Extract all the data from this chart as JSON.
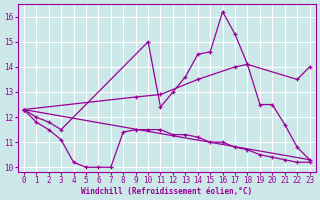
{
  "xlabel": "Windchill (Refroidissement éolien,°C)",
  "background_color": "#cce8e8",
  "grid_color": "#ffffff",
  "line_color": "#990099",
  "xlim": [
    -0.5,
    23.5
  ],
  "ylim": [
    9.8,
    16.5
  ],
  "yticks": [
    10,
    11,
    12,
    13,
    14,
    15,
    16
  ],
  "xticks": [
    0,
    1,
    2,
    3,
    4,
    5,
    6,
    7,
    8,
    9,
    10,
    11,
    12,
    13,
    14,
    15,
    16,
    17,
    18,
    19,
    20,
    21,
    22,
    23
  ],
  "series": [
    {
      "x": [
        0,
        1,
        2,
        3,
        4,
        5,
        6,
        7,
        8,
        9,
        10,
        11,
        12,
        13,
        14,
        15,
        16,
        17,
        18,
        19,
        20,
        21,
        22,
        23
      ],
      "y": [
        12.3,
        11.8,
        11.5,
        11.1,
        10.2,
        10.0,
        10.0,
        10.0,
        11.4,
        11.5,
        11.5,
        11.5,
        11.3,
        11.3,
        11.2,
        11.0,
        11.0,
        10.8,
        10.7,
        10.5,
        10.4,
        10.3,
        10.2,
        10.2
      ]
    },
    {
      "x": [
        0,
        1,
        2,
        3,
        10,
        11,
        12,
        13,
        14,
        15,
        16,
        17,
        18,
        19,
        20,
        21,
        22,
        23
      ],
      "y": [
        12.3,
        12.0,
        11.8,
        11.5,
        15.0,
        12.4,
        13.0,
        13.6,
        14.5,
        14.6,
        16.2,
        15.3,
        14.1,
        12.5,
        12.5,
        11.7,
        10.8,
        10.3
      ]
    },
    {
      "x": [
        0,
        9,
        11,
        14,
        17,
        18,
        22,
        23
      ],
      "y": [
        12.3,
        12.8,
        12.9,
        13.5,
        14.0,
        14.1,
        13.5,
        14.0
      ]
    },
    {
      "x": [
        0,
        23
      ],
      "y": [
        12.3,
        10.3
      ]
    }
  ]
}
